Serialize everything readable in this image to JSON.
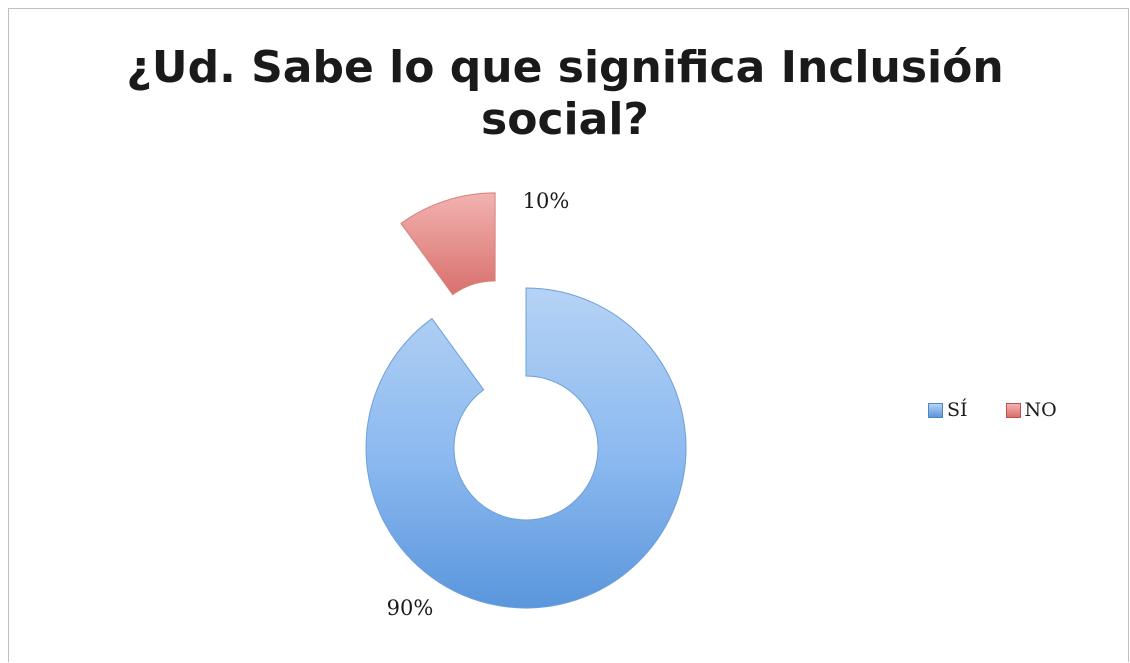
{
  "chart_data": {
    "type": "pie",
    "variant": "exploded-doughnut",
    "title": "¿Ud. Sabe lo que significa Inclusión social?",
    "title_lines": [
      "¿Ud. Sabe lo que significa Inclusión",
      "social?"
    ],
    "categories": [
      "SÍ",
      "NO"
    ],
    "values": [
      90,
      10
    ],
    "data_labels": [
      "90%",
      "10%"
    ],
    "colors": [
      "#5b9bd5",
      "#d9534f"
    ],
    "legend_position": "right"
  }
}
